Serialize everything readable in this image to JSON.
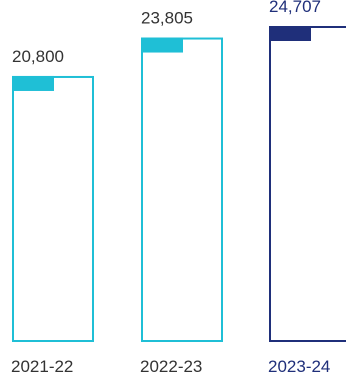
{
  "chart_data": {
    "type": "bar",
    "categories": [
      "2021-22",
      "2022-23",
      "2023-24"
    ],
    "values": [
      20800,
      23805,
      24707
    ],
    "value_labels": [
      "20,800",
      "23,805",
      "24,707"
    ],
    "title": "",
    "xlabel": "",
    "ylabel": "",
    "ylim": [
      0,
      24707
    ],
    "grid": false,
    "legend": "none",
    "bar_style": "outlined",
    "colors": [
      "#1fbfd6",
      "#1fbfd6",
      "#1f2f7a"
    ]
  }
}
